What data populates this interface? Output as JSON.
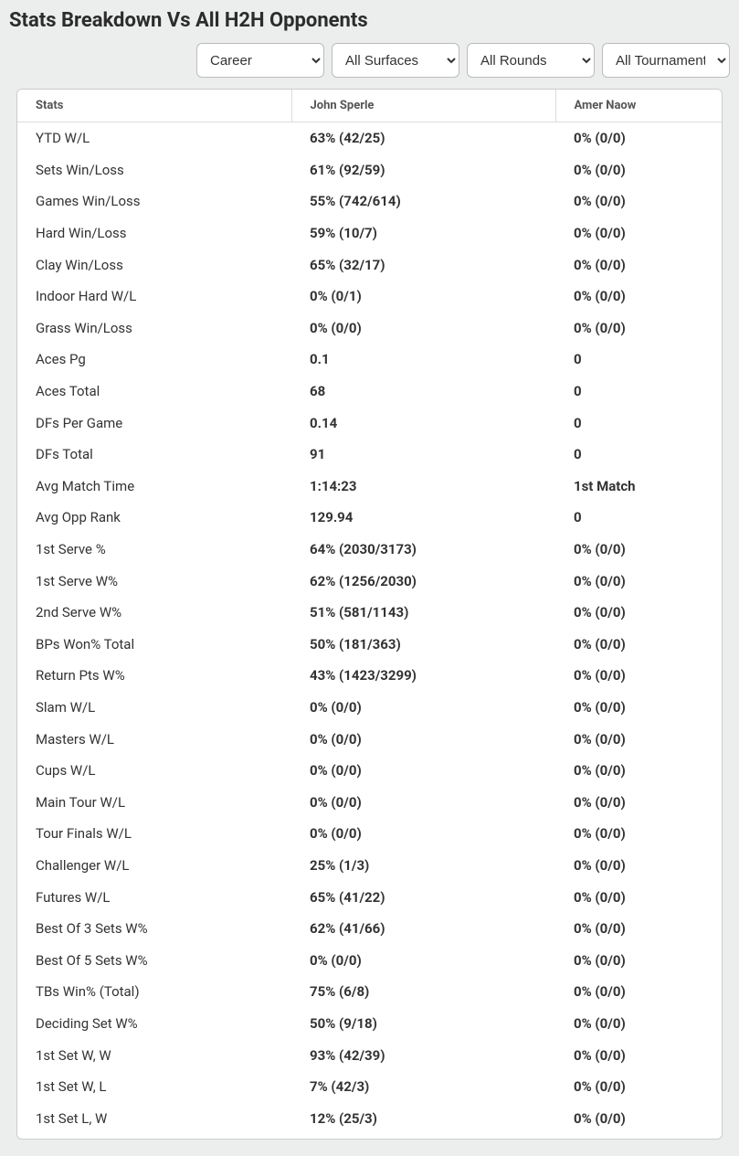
{
  "title": "Stats Breakdown Vs All H2H Opponents",
  "filters": {
    "period": {
      "selected": "Career",
      "options": [
        "Career"
      ]
    },
    "surface": {
      "selected": "All Surfaces",
      "options": [
        "All Surfaces"
      ]
    },
    "round": {
      "selected": "All Rounds",
      "options": [
        "All Rounds"
      ]
    },
    "tournament": {
      "selected": "All Tournaments",
      "options": [
        "All Tournaments"
      ]
    }
  },
  "columns": {
    "stats": "Stats",
    "player1": "John Sperle",
    "player2": "Amer Naow"
  },
  "rows": [
    {
      "label": "YTD W/L",
      "p1": "63% (42/25)",
      "p2": "0% (0/0)"
    },
    {
      "label": "Sets Win/Loss",
      "p1": "61% (92/59)",
      "p2": "0% (0/0)"
    },
    {
      "label": "Games Win/Loss",
      "p1": "55% (742/614)",
      "p2": "0% (0/0)"
    },
    {
      "label": "Hard Win/Loss",
      "p1": "59% (10/7)",
      "p2": "0% (0/0)"
    },
    {
      "label": "Clay Win/Loss",
      "p1": "65% (32/17)",
      "p2": "0% (0/0)"
    },
    {
      "label": "Indoor Hard W/L",
      "p1": "0% (0/1)",
      "p2": "0% (0/0)"
    },
    {
      "label": "Grass Win/Loss",
      "p1": "0% (0/0)",
      "p2": "0% (0/0)"
    },
    {
      "label": "Aces Pg",
      "p1": "0.1",
      "p2": "0"
    },
    {
      "label": "Aces Total",
      "p1": "68",
      "p2": "0"
    },
    {
      "label": "DFs Per Game",
      "p1": "0.14",
      "p2": "0"
    },
    {
      "label": "DFs Total",
      "p1": "91",
      "p2": "0"
    },
    {
      "label": "Avg Match Time",
      "p1": "1:14:23",
      "p2": "1st Match"
    },
    {
      "label": "Avg Opp Rank",
      "p1": "129.94",
      "p2": "0"
    },
    {
      "label": "1st Serve %",
      "p1": "64% (2030/3173)",
      "p2": "0% (0/0)"
    },
    {
      "label": "1st Serve W%",
      "p1": "62% (1256/2030)",
      "p2": "0% (0/0)"
    },
    {
      "label": "2nd Serve W%",
      "p1": "51% (581/1143)",
      "p2": "0% (0/0)"
    },
    {
      "label": "BPs Won% Total",
      "p1": "50% (181/363)",
      "p2": "0% (0/0)"
    },
    {
      "label": "Return Pts W%",
      "p1": "43% (1423/3299)",
      "p2": "0% (0/0)"
    },
    {
      "label": "Slam W/L",
      "p1": "0% (0/0)",
      "p2": "0% (0/0)"
    },
    {
      "label": "Masters W/L",
      "p1": "0% (0/0)",
      "p2": "0% (0/0)"
    },
    {
      "label": "Cups W/L",
      "p1": "0% (0/0)",
      "p2": "0% (0/0)"
    },
    {
      "label": "Main Tour W/L",
      "p1": "0% (0/0)",
      "p2": "0% (0/0)"
    },
    {
      "label": "Tour Finals W/L",
      "p1": "0% (0/0)",
      "p2": "0% (0/0)"
    },
    {
      "label": "Challenger W/L",
      "p1": "25% (1/3)",
      "p2": "0% (0/0)"
    },
    {
      "label": "Futures W/L",
      "p1": "65% (41/22)",
      "p2": "0% (0/0)"
    },
    {
      "label": "Best Of 3 Sets W%",
      "p1": "62% (41/66)",
      "p2": "0% (0/0)"
    },
    {
      "label": "Best Of 5 Sets W%",
      "p1": "0% (0/0)",
      "p2": "0% (0/0)"
    },
    {
      "label": "TBs Win% (Total)",
      "p1": "75% (6/8)",
      "p2": "0% (0/0)"
    },
    {
      "label": "Deciding Set W%",
      "p1": "50% (9/18)",
      "p2": "0% (0/0)"
    },
    {
      "label": "1st Set W, W",
      "p1": "93% (42/39)",
      "p2": "0% (0/0)"
    },
    {
      "label": "1st Set W, L",
      "p1": "7% (42/3)",
      "p2": "0% (0/0)"
    },
    {
      "label": "1st Set L, W",
      "p1": "12% (25/3)",
      "p2": "0% (0/0)"
    }
  ]
}
